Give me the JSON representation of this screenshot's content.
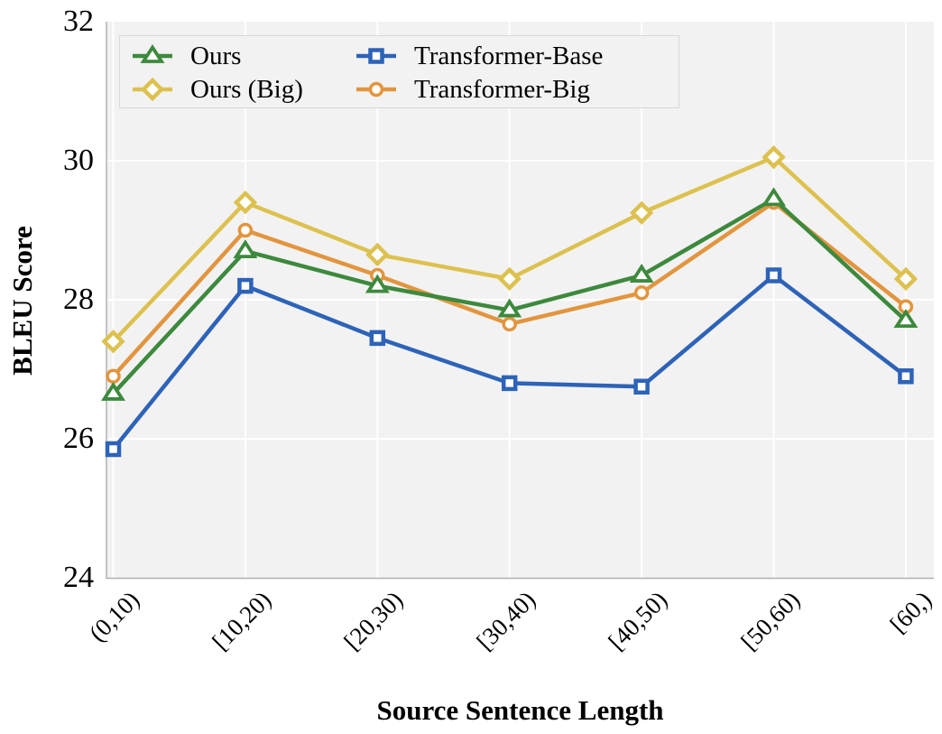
{
  "chart_data": {
    "type": "line",
    "title": "",
    "xlabel": "Source Sentence Length",
    "ylabel": "BLEU Score",
    "categories": [
      "(0,10)",
      "[10,20)",
      "[20,30)",
      "[30,40)",
      "[40,50)",
      "[50,60)",
      "[60,)"
    ],
    "ylim": [
      24,
      32
    ],
    "yticks": [
      24,
      26,
      28,
      30,
      32
    ],
    "grid": true,
    "gridline_color": "#ffffff",
    "plot_bg_color": "#f2f2f2",
    "axis_line_color": "#b0b0b0",
    "legend_position": "top-left-inside",
    "series": [
      {
        "name": "Ours",
        "marker": "triangle",
        "color": "#3d893d",
        "values": [
          26.65,
          28.7,
          28.2,
          27.85,
          28.35,
          29.45,
          27.7
        ]
      },
      {
        "name": "Ours (Big)",
        "marker": "diamond",
        "color": "#ddc14f",
        "values": [
          27.4,
          29.4,
          28.65,
          28.3,
          29.25,
          30.05,
          28.3
        ]
      },
      {
        "name": "Transformer-Base",
        "marker": "square",
        "color": "#2d63b8",
        "values": [
          25.85,
          28.2,
          27.45,
          26.8,
          26.75,
          28.35,
          26.9
        ]
      },
      {
        "name": "Transformer-Big",
        "marker": "circle",
        "color": "#e2953e",
        "values": [
          26.9,
          29.0,
          28.35,
          27.65,
          28.1,
          29.4,
          27.9
        ]
      }
    ]
  }
}
